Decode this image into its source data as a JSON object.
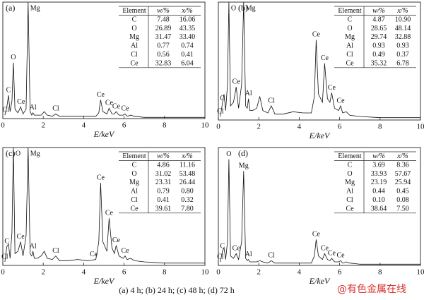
{
  "chart_data": [
    {
      "type": "line",
      "label": "(a)",
      "xlabel": "E/keV",
      "xlim": [
        0,
        10
      ],
      "xticks": [
        0,
        2,
        4,
        6,
        8,
        10
      ],
      "ylim": [
        0,
        100
      ],
      "color": "#111111",
      "x": [
        0.1,
        0.2,
        0.28,
        0.36,
        0.45,
        0.52,
        0.6,
        0.75,
        0.88,
        1.0,
        1.15,
        1.25,
        1.35,
        1.43,
        1.49,
        1.56,
        1.7,
        1.9,
        2.05,
        2.2,
        2.45,
        2.62,
        2.8,
        3.2,
        3.7,
        4.2,
        4.6,
        4.75,
        4.84,
        4.95,
        5.15,
        5.26,
        5.4,
        5.52,
        5.61,
        5.75,
        5.95,
        6.05,
        6.15,
        6.33,
        6.5,
        7,
        8,
        9,
        10
      ],
      "values": [
        3,
        10,
        20,
        6,
        15,
        48,
        8,
        5,
        10,
        4,
        8,
        100,
        6,
        3,
        5,
        3,
        3,
        3,
        6,
        3,
        2,
        4,
        2,
        2,
        2,
        2,
        2,
        5,
        16,
        6,
        4,
        9,
        4,
        4,
        6,
        3,
        3,
        4,
        2,
        3,
        2,
        1,
        1,
        1,
        1
      ],
      "peak_labels": [
        {
          "text": "C",
          "x": 0.28
        },
        {
          "text": "Cl",
          "x": 0.15
        },
        {
          "text": "O",
          "x": 0.52
        },
        {
          "text": "Ce",
          "x": 0.9
        },
        {
          "text": "Mg",
          "x": 1.25
        },
        {
          "text": "Al",
          "x": 1.49
        },
        {
          "text": "Cl",
          "x": 2.62
        },
        {
          "text": "Ce",
          "x": 4.84
        },
        {
          "text": "Ce",
          "x": 5.26
        },
        {
          "text": "Ce",
          "x": 5.61
        },
        {
          "text": "Ce",
          "x": 6.05
        }
      ],
      "table": {
        "header": [
          "Element",
          "w/%",
          "x/%"
        ],
        "rows": [
          [
            "C",
            "7.48",
            "16.06"
          ],
          [
            "O",
            "26.89",
            "43.35"
          ],
          [
            "Mg",
            "31.47",
            "33.40"
          ],
          [
            "Al",
            "0.77",
            "0.74"
          ],
          [
            "Cl",
            "0.56",
            "0.41"
          ],
          [
            "Ce",
            "32.83",
            "6.04"
          ]
        ]
      }
    },
    {
      "type": "line",
      "label": "(b)",
      "xlabel": "E/keV",
      "xlim": [
        0,
        10
      ],
      "xticks": [
        0,
        2,
        4,
        6,
        8,
        10
      ],
      "ylim": [
        0,
        100
      ],
      "color": "#111111",
      "x": [
        0.1,
        0.2,
        0.28,
        0.36,
        0.45,
        0.52,
        0.6,
        0.75,
        0.88,
        1.0,
        1.15,
        1.25,
        1.35,
        1.43,
        1.49,
        1.56,
        1.7,
        1.9,
        2.05,
        2.2,
        2.45,
        2.62,
        2.8,
        3.2,
        3.7,
        4.2,
        4.6,
        4.75,
        4.84,
        4.95,
        5.15,
        5.26,
        5.4,
        5.52,
        5.61,
        5.75,
        5.95,
        6.05,
        6.15,
        6.33,
        6.5,
        7,
        8,
        9,
        10
      ],
      "values": [
        3,
        14,
        22,
        8,
        30,
        100,
        12,
        15,
        28,
        10,
        30,
        100,
        12,
        10,
        18,
        8,
        8,
        10,
        20,
        8,
        6,
        12,
        5,
        5,
        7,
        6,
        6,
        20,
        68,
        22,
        15,
        48,
        18,
        15,
        23,
        10,
        8,
        12,
        6,
        7,
        4,
        3,
        2,
        2,
        2
      ],
      "peak_labels": [
        {
          "text": "C",
          "x": 0.2
        },
        {
          "text": "Cl",
          "x": 0.1
        },
        {
          "text": "O",
          "x": 0.52
        },
        {
          "text": "Ce",
          "x": 0.88
        },
        {
          "text": "Mg",
          "x": 1.25
        },
        {
          "text": "Al",
          "x": 1.49
        },
        {
          "text": "Cl",
          "x": 2.62
        },
        {
          "text": "Ce",
          "x": 4.84
        },
        {
          "text": "Ce",
          "x": 5.26
        },
        {
          "text": "Ce",
          "x": 5.61
        },
        {
          "text": "Ce",
          "x": 6.05
        }
      ],
      "table": {
        "header": [
          "Element",
          "w/%",
          "x/%"
        ],
        "rows": [
          [
            "C",
            "4.87",
            "10.90"
          ],
          [
            "O",
            "28.65",
            "48.14"
          ],
          [
            "Mg",
            "29.74",
            "32.88"
          ],
          [
            "Al",
            "0.93",
            "0.93"
          ],
          [
            "Cl",
            "0.49",
            "0.37"
          ],
          [
            "Ce",
            "35.32",
            "6.78"
          ]
        ]
      }
    },
    {
      "type": "line",
      "label": "(c)",
      "xlabel": "E/keV",
      "xlim": [
        0,
        10
      ],
      "xticks": [
        0,
        2,
        4,
        6,
        8,
        10
      ],
      "ylim": [
        0,
        100
      ],
      "color": "#111111",
      "x": [
        0.1,
        0.2,
        0.28,
        0.36,
        0.45,
        0.52,
        0.6,
        0.75,
        0.88,
        1.0,
        1.15,
        1.25,
        1.35,
        1.43,
        1.49,
        1.56,
        1.7,
        1.9,
        2.05,
        2.2,
        2.45,
        2.62,
        2.8,
        3.2,
        3.7,
        4.2,
        4.6,
        4.75,
        4.84,
        4.95,
        5.15,
        5.26,
        5.4,
        5.52,
        5.61,
        5.75,
        5.95,
        6.05,
        6.15,
        6.33,
        6.5,
        7,
        8,
        9,
        10
      ],
      "values": [
        3,
        16,
        18,
        6,
        28,
        100,
        10,
        12,
        20,
        8,
        25,
        100,
        10,
        8,
        12,
        6,
        6,
        8,
        12,
        6,
        5,
        8,
        4,
        4,
        5,
        4,
        5,
        20,
        70,
        20,
        12,
        40,
        15,
        10,
        17,
        8,
        6,
        8,
        5,
        6,
        4,
        3,
        2,
        2,
        2
      ],
      "peak_labels": [
        {
          "text": "C",
          "x": 0.2
        },
        {
          "text": "Cl",
          "x": 0.1
        },
        {
          "text": "O",
          "x": 0.52
        },
        {
          "text": "Ce",
          "x": 0.88
        },
        {
          "text": "Mg",
          "x": 1.25
        },
        {
          "text": "Al",
          "x": 1.49
        },
        {
          "text": "Cl",
          "x": 2.62
        },
        {
          "text": "Ce",
          "x": 4.5
        },
        {
          "text": "Ce",
          "x": 4.84
        },
        {
          "text": "Ce",
          "x": 5.26
        },
        {
          "text": "Ce",
          "x": 5.61
        },
        {
          "text": "Ce",
          "x": 6.05
        }
      ],
      "table": {
        "header": [
          "Element",
          "w/%",
          "x/%"
        ],
        "rows": [
          [
            "C",
            "4.86",
            "11.16"
          ],
          [
            "O",
            "31.02",
            "53.48"
          ],
          [
            "Mg",
            "23.31",
            "26.44"
          ],
          [
            "Al",
            "0.79",
            "0.80"
          ],
          [
            "Cl",
            "0.41",
            "0.32"
          ],
          [
            "Ce",
            "39.61",
            "7.80"
          ]
        ]
      }
    },
    {
      "type": "line",
      "label": "(d)",
      "xlabel": "E/keV",
      "xlim": [
        0,
        10
      ],
      "xticks": [
        0,
        2,
        4,
        6,
        8,
        10
      ],
      "ylim": [
        0,
        100
      ],
      "color": "#111111",
      "x": [
        0.1,
        0.2,
        0.28,
        0.36,
        0.45,
        0.52,
        0.6,
        0.75,
        0.88,
        1.0,
        1.15,
        1.25,
        1.35,
        1.43,
        1.49,
        1.56,
        1.7,
        1.9,
        2.05,
        2.2,
        2.45,
        2.62,
        2.8,
        3.2,
        3.7,
        4.2,
        4.6,
        4.75,
        4.84,
        4.95,
        5.15,
        5.26,
        5.4,
        5.52,
        5.61,
        5.75,
        5.95,
        6.05,
        6.15,
        6.33,
        6.5,
        7,
        8,
        9,
        10
      ],
      "values": [
        3,
        12,
        15,
        5,
        20,
        90,
        8,
        6,
        10,
        5,
        20,
        80,
        6,
        4,
        5,
        3,
        3,
        3,
        4,
        3,
        2,
        4,
        2,
        2,
        2,
        2,
        2,
        8,
        22,
        8,
        5,
        10,
        5,
        4,
        6,
        3,
        3,
        4,
        2,
        3,
        2,
        1,
        1,
        1,
        1
      ],
      "peak_labels": [
        {
          "text": "C",
          "x": 0.2
        },
        {
          "text": "Cl",
          "x": 0.1
        },
        {
          "text": "O",
          "x": 0.52
        },
        {
          "text": "Ce",
          "x": 0.88
        },
        {
          "text": "Mg",
          "x": 1.25
        },
        {
          "text": "Al",
          "x": 1.49
        },
        {
          "text": "Cl",
          "x": 2.62
        },
        {
          "text": "Ce",
          "x": 4.84
        },
        {
          "text": "Ce",
          "x": 5.26
        },
        {
          "text": "Ce",
          "x": 5.61
        },
        {
          "text": "Ce",
          "x": 6.05
        }
      ],
      "table": {
        "header": [
          "Element",
          "w/%",
          "x/%"
        ],
        "rows": [
          [
            "C",
            "3.69",
            "8.36"
          ],
          [
            "O",
            "33.93",
            "57.67"
          ],
          [
            "Mg",
            "23.19",
            "25.94"
          ],
          [
            "Al",
            "0.44",
            "0.45"
          ],
          [
            "Cl",
            "0.10",
            "0.08"
          ],
          [
            "Ce",
            "38.64",
            "7.50"
          ]
        ]
      }
    }
  ],
  "caption": "(a) 4 h;  (b) 24 h; (c) 48 h; (d) 72 h",
  "watermark": "@有色金属在线"
}
